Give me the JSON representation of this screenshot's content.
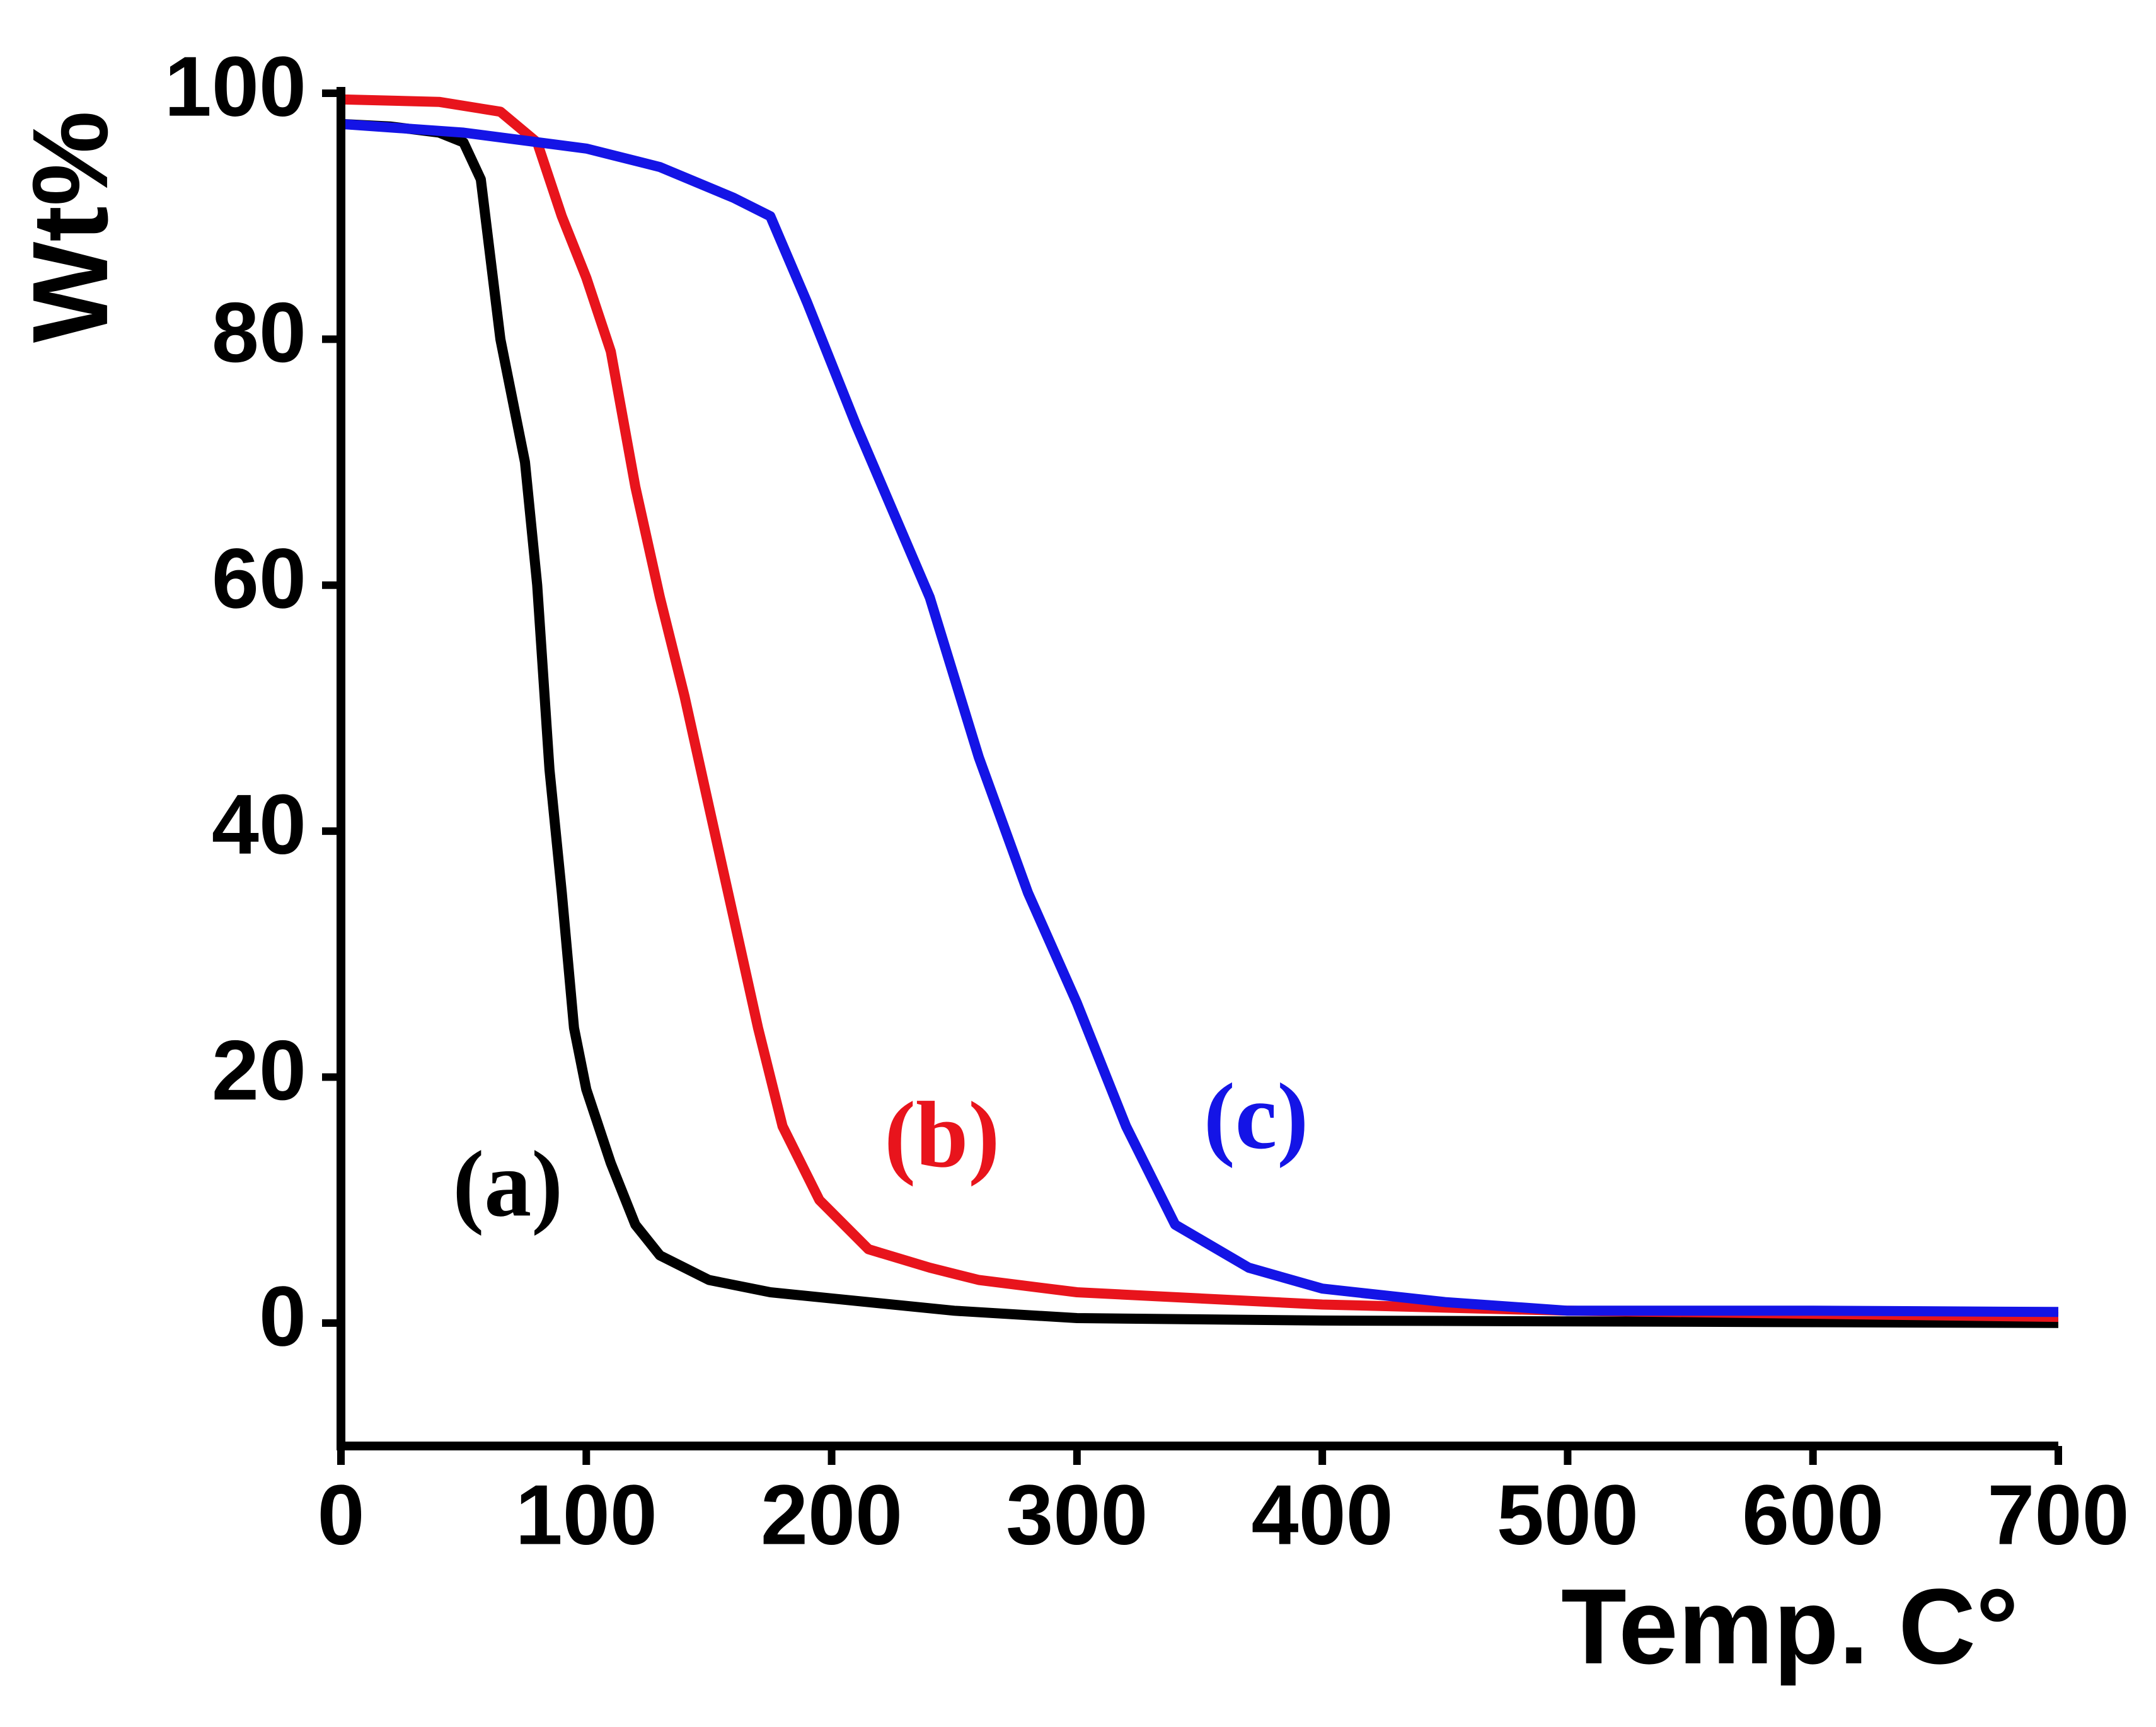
{
  "chart_data": {
    "type": "line",
    "x_label": "Temp. C°",
    "y_label": "Wt%",
    "annotations": [
      "(a)",
      "(b)",
      "(c)"
    ],
    "series": [
      {
        "name": "(a)",
        "color": "#000000",
        "x": [
          0,
          20,
          40,
          50,
          57,
          65,
          75,
          80,
          85,
          90,
          95,
          100,
          110,
          120,
          130,
          150,
          175,
          200,
          250,
          300,
          400,
          700
        ],
        "values": [
          97.5,
          97.3,
          96.8,
          96,
          93,
          80,
          70,
          60,
          45,
          35,
          24,
          19,
          13,
          8,
          5.5,
          3.5,
          2.5,
          2,
          1,
          0.4,
          0.2,
          0
        ]
      },
      {
        "name": "(b)",
        "color": "#e8141c",
        "x": [
          0,
          40,
          65,
          80,
          90,
          100,
          110,
          120,
          130,
          140,
          150,
          160,
          170,
          180,
          195,
          215,
          240,
          260,
          300,
          350,
          400,
          500,
          700
        ],
        "values": [
          99.5,
          99.3,
          98.5,
          96,
          90,
          85,
          79,
          68,
          59,
          51,
          42,
          33,
          24,
          16,
          10,
          6,
          4.5,
          3.5,
          2.5,
          2,
          1.5,
          1,
          0.5
        ]
      },
      {
        "name": "(c)",
        "color": "#1414e6",
        "x": [
          0,
          50,
          100,
          130,
          160,
          175,
          190,
          210,
          225,
          240,
          260,
          280,
          300,
          320,
          340,
          370,
          400,
          450,
          500,
          600,
          700
        ],
        "values": [
          97.5,
          96.8,
          95.5,
          94,
          91.5,
          90,
          83,
          73,
          66,
          59,
          46,
          35,
          26,
          16,
          8,
          4.5,
          2.8,
          1.7,
          1,
          1,
          0.9
        ]
      }
    ],
    "xlim": [
      0,
      700
    ],
    "xticks": [
      0,
      100,
      200,
      300,
      400,
      500,
      600,
      700
    ],
    "ylim": [
      -10,
      100
    ],
    "yticks": [
      0,
      20,
      40,
      60,
      80,
      100
    ],
    "grid": false
  }
}
